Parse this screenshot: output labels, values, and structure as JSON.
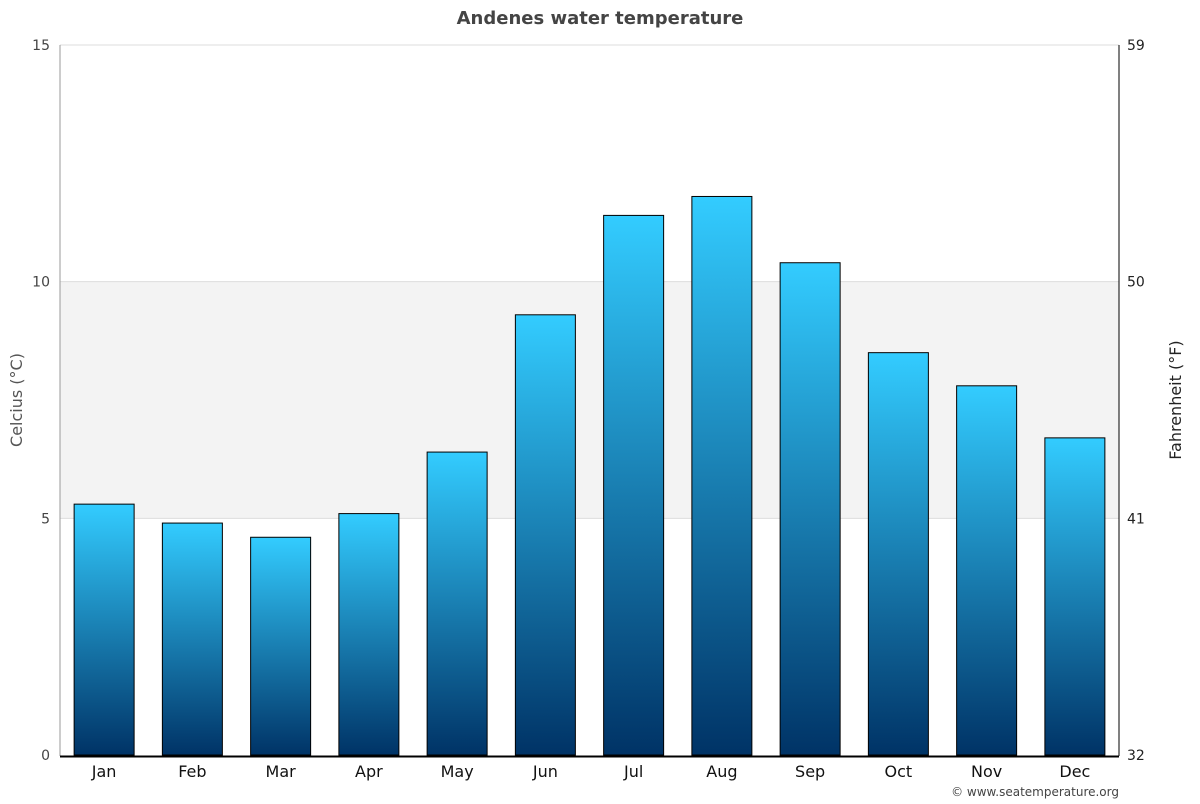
{
  "chart_data": {
    "type": "bar",
    "title": "Andenes water temperature",
    "categories": [
      "Jan",
      "Feb",
      "Mar",
      "Apr",
      "May",
      "Jun",
      "Jul",
      "Aug",
      "Sep",
      "Oct",
      "Nov",
      "Dec"
    ],
    "values": [
      5.3,
      4.9,
      4.6,
      5.1,
      6.4,
      9.3,
      11.4,
      11.8,
      10.4,
      8.5,
      7.8,
      6.7
    ],
    "ylabel": "Celcius (°C)",
    "y2label": "Fahrenheit (°F)",
    "ylim": [
      0,
      15
    ],
    "yticks": [
      "0",
      "5",
      "10",
      "15"
    ],
    "y2ticks": [
      "32",
      "41",
      "50",
      "59"
    ],
    "grid": true,
    "shaded_band": [
      5,
      10
    ],
    "colors": {
      "bar_top": "#33ccff",
      "bar_bottom": "#003366",
      "band": "#f3f3f3"
    }
  },
  "credit": "© www.seatemperature.org"
}
